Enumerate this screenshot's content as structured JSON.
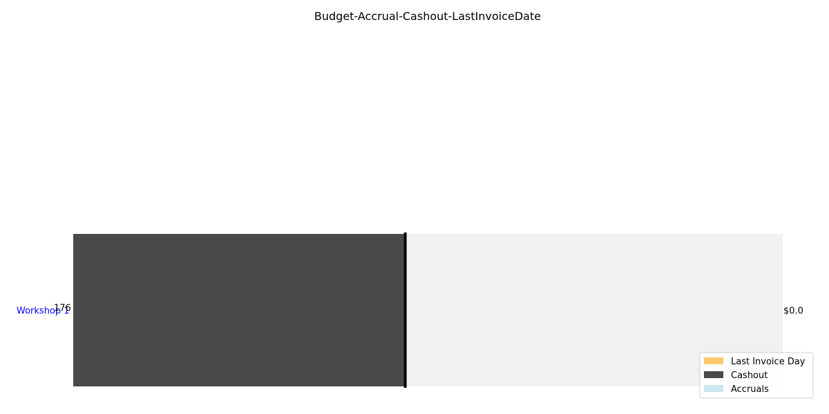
{
  "chart_data": {
    "type": "bar",
    "orientation": "horizontal",
    "stacked": true,
    "title": "Budget-Accrual-Cashout-LastInvoiceDate",
    "xlabel": "",
    "ylabel": "",
    "categories": [
      "Workshop 1"
    ],
    "budget_label": "176",
    "series": [
      {
        "name": "Cashout",
        "values": [
          0.468
        ],
        "color": "#4a4a4a"
      },
      {
        "name": "Accruals",
        "values": [
          0
        ],
        "color": "#cde6f0"
      }
    ],
    "remaining_color": "#f1f1f1",
    "last_invoice_day": {
      "name": "Last Invoice Day",
      "value": 0.468,
      "marker_color": "#000000",
      "legend_color": "#ffc870"
    },
    "end_labels": [
      "$0.0"
    ],
    "xlim": [
      0,
      1
    ],
    "axes_visible": false,
    "grid": false,
    "legend_position": "bottom-right",
    "legend": [
      {
        "label": "Last Invoice Day",
        "color": "#ffc870"
      },
      {
        "label": "Cashout",
        "color": "#4a4a4a"
      },
      {
        "label": "Accruals",
        "color": "#cde6f0"
      }
    ]
  }
}
